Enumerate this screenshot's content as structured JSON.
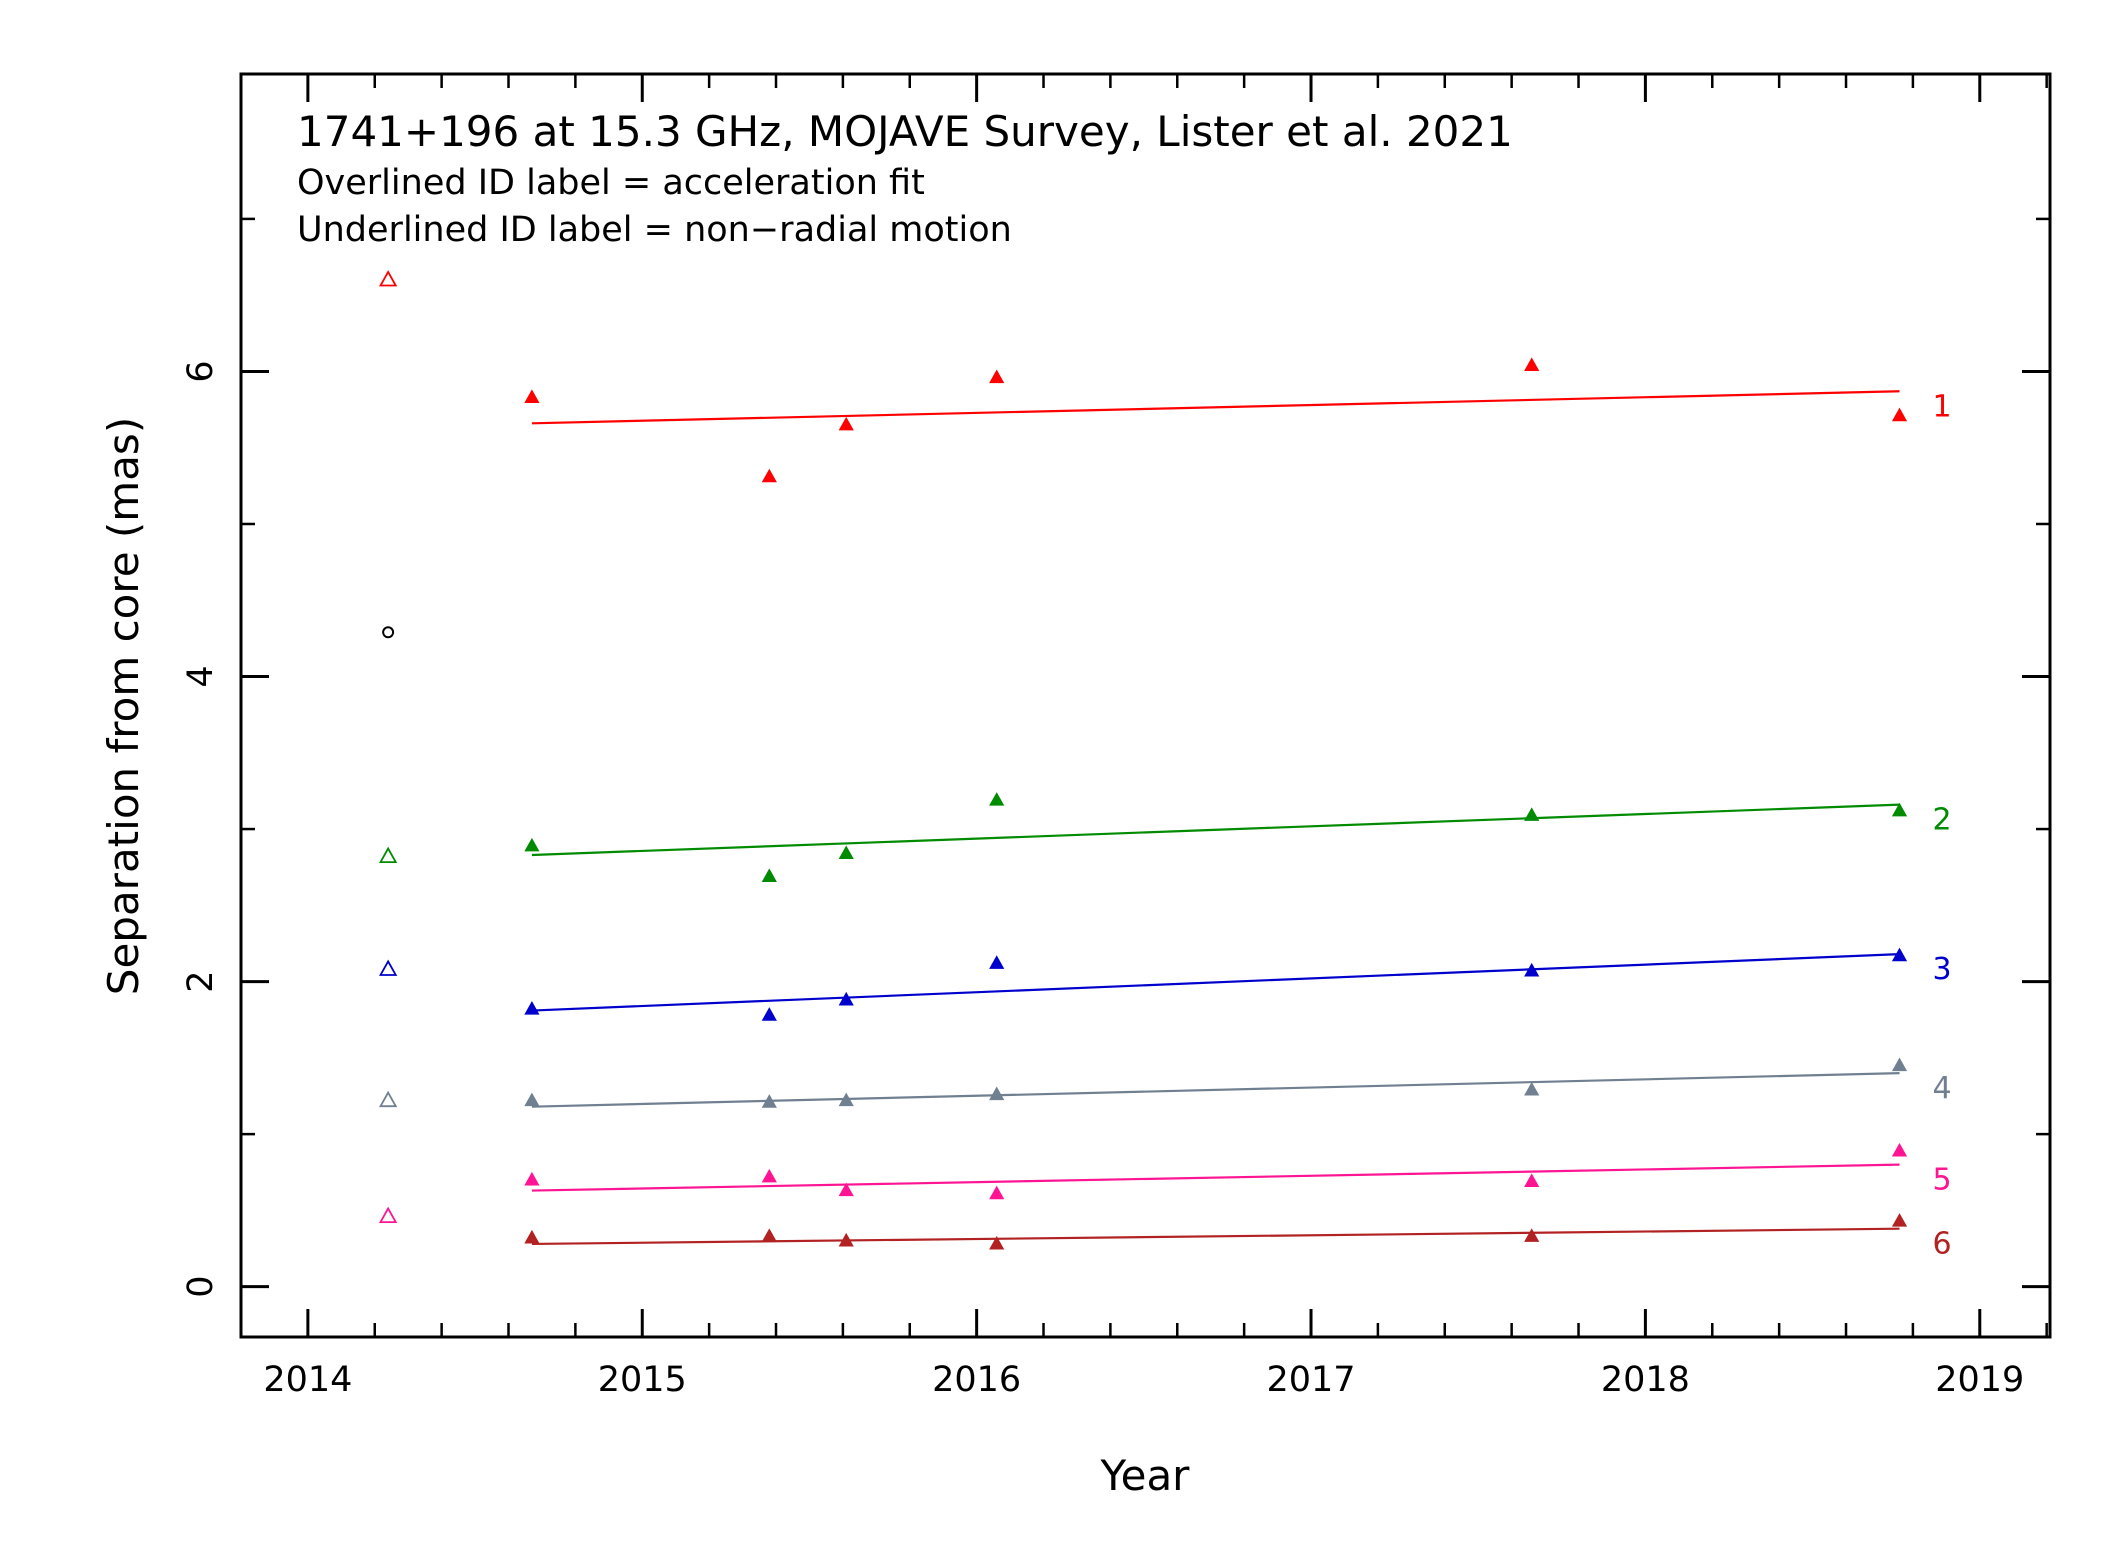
{
  "chart_data": {
    "type": "scatter",
    "title": "1741+196 at 15.3 GHz, MOJAVE Survey, Lister et al. 2021",
    "subtitle_lines": [
      "Overlined ID label = acceleration fit",
      "Underlined ID label = non−radial motion"
    ],
    "xlabel": "Year",
    "ylabel": "Separation from core (mas)",
    "xlim": [
      2013.8,
      2019.21
    ],
    "ylim": [
      -0.33,
      7.95
    ],
    "xticks": [
      2014,
      2015,
      2016,
      2017,
      2018,
      2019
    ],
    "yticks": [
      0,
      2,
      4,
      6
    ],
    "x": [
      2014.67,
      2015.38,
      2015.61,
      2016.06,
      2017.66,
      2018.76
    ],
    "series": [
      {
        "name": "1",
        "color": "#ff0000",
        "values": [
          5.83,
          5.31,
          5.65,
          5.96,
          6.04,
          5.71
        ],
        "fit": [
          [
            2014.67,
            5.66
          ],
          [
            2018.76,
            5.87
          ]
        ],
        "open_marker": [
          2014.24,
          6.6
        ]
      },
      {
        "name": "2",
        "color": "#008b00",
        "values": [
          2.89,
          2.69,
          2.84,
          3.19,
          3.09,
          3.12
        ],
        "fit": [
          [
            2014.67,
            2.83
          ],
          [
            2018.76,
            3.16
          ]
        ],
        "open_marker": [
          2014.24,
          2.82
        ]
      },
      {
        "name": "3",
        "color": "#0000cd",
        "values": [
          1.82,
          1.78,
          1.88,
          2.12,
          2.07,
          2.17
        ],
        "fit": [
          [
            2014.67,
            1.81
          ],
          [
            2018.76,
            2.18
          ]
        ],
        "open_marker": [
          2014.24,
          2.08
        ]
      },
      {
        "name": "4",
        "color": "#708090",
        "values": [
          1.22,
          1.21,
          1.22,
          1.26,
          1.29,
          1.45
        ],
        "fit": [
          [
            2014.67,
            1.18
          ],
          [
            2018.76,
            1.4
          ]
        ],
        "open_marker": [
          2014.24,
          1.22
        ]
      },
      {
        "name": "5",
        "color": "#ff1493",
        "values": [
          0.7,
          0.72,
          0.63,
          0.61,
          0.69,
          0.89
        ],
        "fit": [
          [
            2014.67,
            0.63
          ],
          [
            2018.76,
            0.8
          ]
        ],
        "open_marker": [
          2014.24,
          0.46
        ]
      },
      {
        "name": "6",
        "color": "#b22222",
        "values": [
          0.32,
          0.33,
          0.3,
          0.28,
          0.33,
          0.43
        ],
        "fit": [
          [
            2014.67,
            0.28
          ],
          [
            2018.76,
            0.38
          ]
        ]
      }
    ],
    "unassigned": [
      {
        "x": 2014.24,
        "y": 4.29,
        "marker": "open-circle",
        "color": "#000000"
      }
    ],
    "grid": false,
    "legend": "none"
  }
}
